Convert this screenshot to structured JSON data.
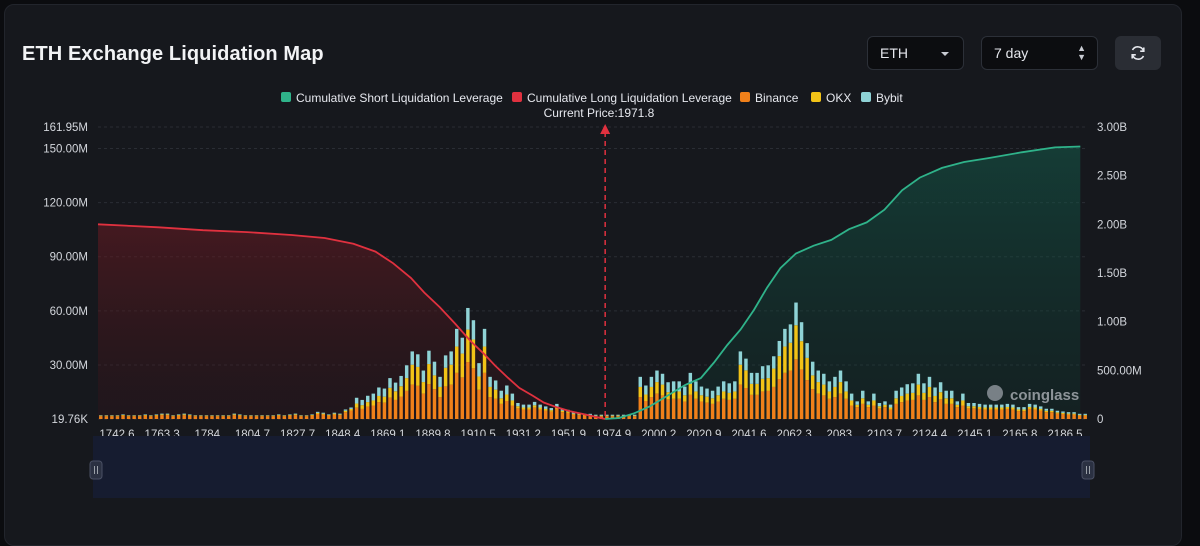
{
  "header": {
    "title": "ETH Exchange Liquidation Map",
    "coin_select": "ETH",
    "range_select": "7 day"
  },
  "chart_data": {
    "type": "bar",
    "x_ticks": [
      "1742.6",
      "1763.3",
      "1784",
      "1804.7",
      "1827.7",
      "1848.4",
      "1869.1",
      "1889.8",
      "1910.5",
      "1931.2",
      "1951.9",
      "1974.9",
      "2000.2",
      "2020.9",
      "2041.6",
      "2062.3",
      "2083",
      "2103.7",
      "2124.4",
      "2145.1",
      "2165.8",
      "2186.5"
    ],
    "x_range": [
      1742.6,
      2190
    ],
    "ylim_left": [
      19760,
      161950000
    ],
    "y_ticks_left": [
      {
        "label": "161.95M",
        "value": 161950000
      },
      {
        "label": "150.00M",
        "value": 150000000
      },
      {
        "label": "120.00M",
        "value": 120000000
      },
      {
        "label": "90.00M",
        "value": 90000000
      },
      {
        "label": "60.00M",
        "value": 60000000
      },
      {
        "label": "30.00M",
        "value": 30000000
      },
      {
        "label": "19.76K",
        "value": 19760
      }
    ],
    "y_ticks_right": [
      {
        "label": "3.00B",
        "value": 3000000000
      },
      {
        "label": "2.50B",
        "value": 2500000000
      },
      {
        "label": "2.00B",
        "value": 2000000000
      },
      {
        "label": "1.50B",
        "value": 1500000000
      },
      {
        "label": "1.00B",
        "value": 1000000000
      },
      {
        "label": "500.00M",
        "value": 500000000
      },
      {
        "label": "0",
        "value": 0
      }
    ],
    "ylim_right": [
      0,
      3000000000
    ],
    "current_price": 1971.8,
    "current_price_label": "Current Price:1971.8",
    "legend": [
      {
        "name": "Cumulative Short Liquidation Leverage",
        "color": "#2fb38a"
      },
      {
        "name": "Cumulative Long Liquidation Leverage",
        "color": "#e0313f"
      },
      {
        "name": "Binance",
        "color": "#f0801a"
      },
      {
        "name": "OKX",
        "color": "#f2c317"
      },
      {
        "name": "Bybit",
        "color": "#8fd3d6"
      }
    ],
    "colors": {
      "long": "#e0313f",
      "short": "#2fb38a",
      "binance": "#f0801a",
      "okx": "#f2c317",
      "bybit": "#8fd3d6"
    },
    "bar_series": [
      {
        "name": "Binance",
        "values": [
          1.6,
          1.6,
          1.6,
          1.6,
          1.9,
          1.6,
          1.6,
          1.6,
          1.9,
          1.6,
          1.9,
          2.2,
          2.2,
          1.6,
          1.9,
          2.2,
          1.9,
          1.6,
          1.6,
          1.6,
          1.6,
          1.6,
          1.6,
          1.6,
          2.2,
          1.9,
          1.6,
          1.6,
          1.6,
          1.6,
          1.6,
          1.6,
          1.9,
          1.6,
          1.9,
          2.2,
          1.6,
          1.6,
          1.9,
          2.8,
          2.5,
          1.9,
          2.5,
          2.2,
          3.8,
          4.7,
          6.3,
          5.6,
          6.9,
          7.5,
          9.4,
          9.1,
          11.9,
          10.6,
          12.5,
          15.6,
          19.1,
          18.4,
          14.1,
          19.4,
          16.6,
          12.2,
          18.1,
          19.1,
          25.6,
          23.1,
          31.6,
          28.1,
          16.2,
          25.6,
          12.2,
          11.2,
          8.4,
          10.0,
          7.5,
          5.9,
          5.3,
          5.3,
          6.3,
          5.3,
          4.7,
          4.1,
          5.6,
          3.8,
          3.4,
          2.5,
          2.2,
          1.9,
          1.9,
          1.6,
          1.6,
          1.6,
          1.6,
          1.6,
          1.6,
          1.6,
          1.6,
          12.2,
          10.0,
          12.2,
          14.1,
          13.1,
          10.9,
          11.2,
          11.2,
          9.7,
          13.4,
          11.2,
          9.7,
          9.1,
          8.4,
          9.7,
          11.2,
          10.6,
          11.2,
          19.1,
          17.2,
          13.4,
          13.4,
          15.3,
          15.6,
          17.8,
          22.2,
          25.6,
          26.9,
          33.1,
          27.5,
          21.6,
          16.6,
          14.1,
          13.1,
          11.2,
          12.2,
          14.1,
          11.2,
          7.5,
          6.6,
          8.4,
          6.6,
          7.5,
          5.9,
          6.6,
          5.3,
          8.4,
          9.4,
          10.3,
          10.6,
          13.1,
          10.6,
          12.2,
          9.4,
          10.9,
          8.4,
          8.4,
          6.6,
          7.5,
          5.9,
          5.9,
          5.6,
          5.3,
          5.3,
          5.3,
          5.3,
          5.6,
          5.3,
          4.4,
          4.4,
          5.6,
          5.3,
          4.7,
          3.8,
          3.8,
          3.1,
          2.8,
          2.5,
          2.5,
          1.9,
          1.9
        ]
      },
      {
        "name": "OKX",
        "values": [
          0.3,
          0.3,
          0.3,
          0.3,
          0.4,
          0.3,
          0.3,
          0.3,
          0.4,
          0.3,
          0.4,
          0.4,
          0.4,
          0.3,
          0.4,
          0.4,
          0.4,
          0.3,
          0.3,
          0.3,
          0.3,
          0.3,
          0.3,
          0.3,
          0.4,
          0.4,
          0.3,
          0.3,
          0.3,
          0.3,
          0.3,
          0.3,
          0.4,
          0.3,
          0.4,
          0.4,
          0.3,
          0.3,
          0.4,
          0.6,
          0.5,
          0.4,
          0.5,
          0.4,
          0.8,
          0.9,
          2.3,
          2.1,
          2.5,
          2.8,
          3.4,
          3.3,
          5.4,
          4.8,
          5.7,
          7.1,
          11.0,
          10.5,
          6.4,
          11.1,
          7.6,
          5.6,
          10.3,
          11.0,
          14.6,
          13.2,
          18.0,
          16.0,
          7.4,
          14.6,
          5.6,
          5.1,
          3.1,
          3.6,
          2.8,
          1.2,
          1.1,
          1.1,
          1.3,
          1.1,
          0.9,
          0.8,
          1.1,
          0.8,
          0.7,
          0.5,
          0.4,
          0.4,
          0.4,
          0.3,
          0.3,
          0.3,
          0.3,
          0.3,
          0.3,
          0.3,
          0.3,
          5.6,
          3.6,
          5.6,
          6.4,
          6.0,
          4.0,
          4.1,
          4.1,
          3.5,
          6.1,
          4.1,
          3.5,
          3.3,
          3.1,
          3.5,
          4.1,
          3.9,
          4.1,
          11.0,
          9.8,
          6.1,
          6.1,
          7.0,
          7.1,
          10.2,
          12.7,
          14.6,
          15.4,
          18.9,
          15.7,
          12.3,
          7.6,
          6.4,
          6.0,
          4.1,
          5.6,
          6.4,
          4.1,
          2.8,
          1.3,
          3.1,
          1.3,
          2.8,
          1.2,
          1.3,
          1.1,
          3.1,
          3.4,
          3.8,
          3.9,
          6.0,
          3.9,
          5.6,
          3.4,
          4.0,
          3.1,
          3.1,
          1.3,
          2.8,
          1.2,
          1.2,
          1.1,
          1.1,
          1.1,
          1.1,
          1.1,
          1.1,
          1.1,
          0.9,
          0.9,
          1.1,
          1.1,
          0.9,
          0.8,
          0.8,
          0.6,
          0.6,
          0.5,
          0.5,
          0.4,
          0.4
        ]
      },
      {
        "name": "Bybit",
        "values": [
          0.2,
          0.2,
          0.2,
          0.2,
          0.3,
          0.2,
          0.2,
          0.2,
          0.3,
          0.2,
          0.3,
          0.4,
          0.4,
          0.2,
          0.3,
          0.4,
          0.3,
          0.2,
          0.2,
          0.2,
          0.2,
          0.2,
          0.2,
          0.2,
          0.4,
          0.3,
          0.2,
          0.2,
          0.2,
          0.2,
          0.2,
          0.2,
          0.3,
          0.2,
          0.3,
          0.4,
          0.2,
          0.2,
          0.3,
          0.6,
          0.5,
          0.3,
          0.5,
          0.4,
          0.7,
          0.8,
          3.2,
          2.9,
          3.5,
          3.8,
          4.7,
          4.5,
          5.4,
          4.8,
          5.7,
          7.1,
          7.4,
          7.0,
          6.4,
          7.4,
          7.6,
          5.6,
          6.9,
          7.4,
          9.8,
          8.8,
          12.0,
          10.7,
          7.4,
          9.8,
          5.6,
          5.1,
          4.2,
          5.0,
          3.8,
          1.8,
          1.6,
          1.6,
          1.9,
          1.6,
          1.4,
          1.2,
          1.7,
          1.1,
          1.0,
          0.8,
          0.7,
          0.6,
          0.6,
          0.5,
          0.5,
          0.5,
          0.5,
          0.5,
          0.5,
          0.5,
          0.5,
          5.6,
          5.0,
          5.6,
          6.4,
          6.0,
          5.5,
          5.6,
          5.6,
          4.8,
          6.1,
          5.6,
          4.8,
          4.5,
          4.2,
          4.8,
          5.6,
          5.3,
          5.6,
          7.4,
          6.5,
          6.1,
          6.1,
          7.0,
          7.1,
          6.8,
          8.4,
          9.8,
          10.2,
          12.6,
          10.5,
          8.2,
          7.6,
          6.4,
          6.0,
          5.6,
          5.6,
          6.4,
          5.6,
          3.8,
          1.9,
          4.2,
          1.9,
          3.8,
          1.8,
          1.9,
          1.6,
          4.2,
          4.7,
          5.2,
          5.3,
          6.0,
          5.3,
          5.6,
          4.7,
          5.5,
          4.2,
          4.2,
          1.9,
          3.8,
          1.8,
          1.8,
          1.7,
          1.6,
          1.6,
          1.6,
          1.6,
          1.7,
          1.6,
          1.3,
          1.3,
          1.7,
          1.6,
          1.4,
          1.1,
          1.1,
          0.9,
          0.8,
          0.8,
          0.8,
          0.6,
          0.6
        ]
      }
    ],
    "long_cumulative": {
      "x": [
        1742.6,
        1770,
        1790,
        1810,
        1830,
        1845,
        1858,
        1868,
        1876,
        1884,
        1890,
        1897,
        1904,
        1911,
        1917,
        1922,
        1928,
        1933,
        1939,
        1944,
        1950,
        1956,
        1962,
        1968,
        1971.8
      ],
      "y": [
        2.0,
        1.97,
        1.94,
        1.92,
        1.89,
        1.86,
        1.8,
        1.72,
        1.6,
        1.45,
        1.3,
        1.15,
        0.98,
        0.8,
        0.67,
        0.55,
        0.42,
        0.32,
        0.24,
        0.17,
        0.12,
        0.08,
        0.05,
        0.02,
        0
      ]
    },
    "short_cumulative": {
      "x": [
        1971.8,
        1978,
        1985,
        1992,
        2000,
        2008,
        2015,
        2021,
        2027,
        2033,
        2039,
        2045,
        2051,
        2058,
        2066,
        2074,
        2082,
        2090,
        2098,
        2106,
        2114,
        2124,
        2134,
        2145,
        2160,
        2175,
        2186.5
      ],
      "y": [
        0,
        0.01,
        0.06,
        0.13,
        0.24,
        0.35,
        0.42,
        0.58,
        0.76,
        0.92,
        1.12,
        1.35,
        1.55,
        1.7,
        1.78,
        1.84,
        1.95,
        2.02,
        2.15,
        2.35,
        2.48,
        2.58,
        2.64,
        2.68,
        2.74,
        2.79,
        2.8
      ]
    },
    "watermark": "coinglass"
  }
}
